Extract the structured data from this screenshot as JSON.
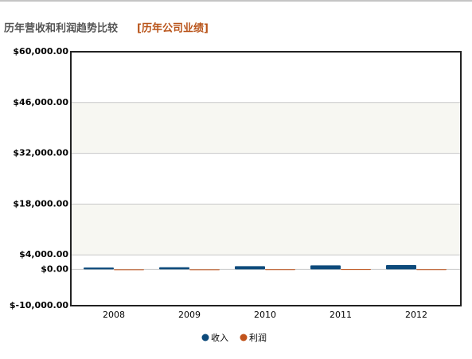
{
  "chart_data": {
    "type": "bar",
    "title": "历年营收和利润趋势比较",
    "subtitle": "[历年公司业绩]",
    "categories": [
      "2008",
      "2009",
      "2010",
      "2011",
      "2012"
    ],
    "series": [
      {
        "name": "收入",
        "color": "#0d4a7b",
        "values": [
          500,
          600,
          900,
          1100,
          1200
        ]
      },
      {
        "name": "利润",
        "color": "#c1531b",
        "values": [
          20,
          20,
          30,
          60,
          40
        ]
      }
    ],
    "ylim": [
      -10000,
      60000
    ],
    "yticks": [
      {
        "value": -10000,
        "label": "$-10,000.00"
      },
      {
        "value": 0,
        "label": "$0.00"
      },
      {
        "value": 4000,
        "label": "$4,000.00"
      },
      {
        "value": 18000,
        "label": "$18,000.00"
      },
      {
        "value": 32000,
        "label": "$32,000.00"
      },
      {
        "value": 46000,
        "label": "$46,000.00"
      },
      {
        "value": 60000,
        "label": "$60,000.00"
      }
    ],
    "grid": true
  }
}
